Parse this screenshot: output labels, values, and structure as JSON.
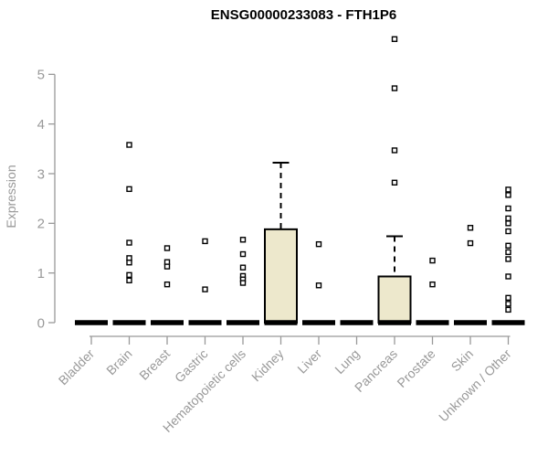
{
  "title": "ENSG00000233083 - FTH1P6",
  "colors": {
    "box_fill": "#ede8cc",
    "box_border": "#000000",
    "median_bar": "#000000",
    "outlier": "#000000",
    "outlier_fill": "#ffffff",
    "axis": "#999999",
    "tick_label": "#999999",
    "title_color": "#000000",
    "background": "#ffffff"
  },
  "chart_data": {
    "type": "box",
    "title": "ENSG00000233083 - FTH1P6",
    "xlabel": "",
    "ylabel": "Expression",
    "ylim": [
      0,
      5.8
    ],
    "yticks": [
      0,
      1,
      2,
      3,
      4,
      5
    ],
    "grid": false,
    "legend": "none",
    "categories": [
      "Bladder",
      "Brain",
      "Breast",
      "Gastric",
      "Hematopoietic cells",
      "Kidney",
      "Liver",
      "Lung",
      "Pancreas",
      "Prostate",
      "Skin",
      "Unknown / Other"
    ],
    "boxes": [
      {
        "category": "Bladder",
        "median": 0,
        "q1": 0,
        "q3": 0,
        "whisker_low": 0,
        "whisker_high": 0,
        "outliers": []
      },
      {
        "category": "Brain",
        "median": 0,
        "q1": 0,
        "q3": 0,
        "whisker_low": 0,
        "whisker_high": 0,
        "outliers": [
          3.58,
          2.69,
          1.61,
          1.3,
          1.21,
          0.96,
          0.85
        ]
      },
      {
        "category": "Breast",
        "median": 0,
        "q1": 0,
        "q3": 0,
        "whisker_low": 0,
        "whisker_high": 0,
        "outliers": [
          1.5,
          1.22,
          1.13,
          0.77
        ]
      },
      {
        "category": "Gastric",
        "median": 0,
        "q1": 0,
        "q3": 0,
        "whisker_low": 0,
        "whisker_high": 0,
        "outliers": [
          1.64,
          0.67
        ]
      },
      {
        "category": "Hematopoietic cells",
        "median": 0,
        "q1": 0,
        "q3": 0,
        "whisker_low": 0,
        "whisker_high": 0,
        "outliers": [
          1.67,
          1.38,
          1.11,
          0.94,
          0.87,
          0.8
        ]
      },
      {
        "category": "Kidney",
        "median": 0,
        "q1": 0,
        "q3": 1.88,
        "whisker_low": 0,
        "whisker_high": 3.22,
        "outliers": []
      },
      {
        "category": "Liver",
        "median": 0,
        "q1": 0,
        "q3": 0,
        "whisker_low": 0,
        "whisker_high": 0,
        "outliers": [
          1.58,
          0.75
        ]
      },
      {
        "category": "Lung",
        "median": 0,
        "q1": 0,
        "q3": 0,
        "whisker_low": 0,
        "whisker_high": 0,
        "outliers": []
      },
      {
        "category": "Pancreas",
        "median": 0,
        "q1": 0,
        "q3": 0.93,
        "whisker_low": 0,
        "whisker_high": 1.74,
        "outliers": [
          5.71,
          4.72,
          3.47,
          2.82
        ]
      },
      {
        "category": "Prostate",
        "median": 0,
        "q1": 0,
        "q3": 0,
        "whisker_low": 0,
        "whisker_high": 0,
        "outliers": [
          1.25,
          0.77
        ]
      },
      {
        "category": "Skin",
        "median": 0,
        "q1": 0,
        "q3": 0,
        "whisker_low": 0,
        "whisker_high": 0,
        "outliers": [
          1.91,
          1.6
        ]
      },
      {
        "category": "Unknown / Other",
        "median": 0,
        "q1": 0,
        "q3": 0,
        "whisker_low": 0,
        "whisker_high": 0,
        "outliers": [
          2.68,
          2.57,
          2.3,
          2.1,
          2.0,
          1.84,
          1.55,
          1.42,
          1.28,
          0.93,
          0.5,
          0.38,
          0.26
        ]
      }
    ]
  }
}
